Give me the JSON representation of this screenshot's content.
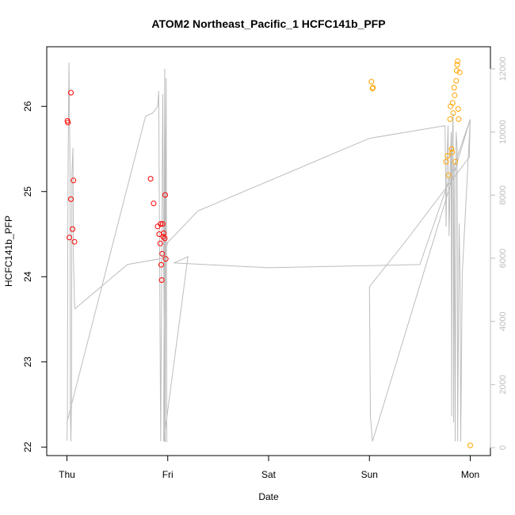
{
  "chart_data": {
    "type": "scatter",
    "title": "ATOM2 Northeast_Pacific_1 HCFC141b_PFP",
    "xlabel": "Date",
    "ylabel": "HCFC141b_PFP",
    "x_ticks": [
      {
        "x": 0,
        "label": "Thu"
      },
      {
        "x": 1,
        "label": "Fri"
      },
      {
        "x": 2,
        "label": "Sat"
      },
      {
        "x": 3,
        "label": "Sun"
      },
      {
        "x": 4,
        "label": "Mon"
      }
    ],
    "xlim": [
      -0.2,
      4.2
    ],
    "ylim": [
      21.9,
      26.7
    ],
    "y_ticks": [
      22,
      23,
      24,
      25,
      26
    ],
    "y2lim": [
      -250,
      12700
    ],
    "y2_ticks": [
      0,
      2000,
      4000,
      6000,
      8000,
      10000,
      12000
    ],
    "grid": false,
    "legend": "none",
    "colors": {
      "red": "#ff0000",
      "orange": "#ffa500",
      "altitude": "#bdbdbd"
    },
    "series": [
      {
        "color": "red",
        "points": [
          [
            0.005,
            25.83
          ],
          [
            0.01,
            25.81
          ],
          [
            0.025,
            24.46
          ],
          [
            0.04,
            26.16
          ],
          [
            0.04,
            24.91
          ],
          [
            0.055,
            24.56
          ],
          [
            0.065,
            25.13
          ],
          [
            0.075,
            24.41
          ],
          [
            0.83,
            25.15
          ],
          [
            0.86,
            24.86
          ],
          [
            0.9,
            24.59
          ],
          [
            0.915,
            24.5
          ],
          [
            0.925,
            24.39
          ],
          [
            0.93,
            24.62
          ],
          [
            0.935,
            24.14
          ],
          [
            0.94,
            23.96
          ],
          [
            0.945,
            24.27
          ],
          [
            0.95,
            24.62
          ],
          [
            0.955,
            24.47
          ],
          [
            0.96,
            24.51
          ],
          [
            0.97,
            24.45
          ],
          [
            0.975,
            24.96
          ],
          [
            0.98,
            24.21
          ]
        ]
      },
      {
        "color": "orange",
        "points": [
          [
            3.02,
            26.29
          ],
          [
            3.03,
            26.21
          ],
          [
            3.035,
            26.22
          ],
          [
            3.76,
            25.35
          ],
          [
            3.775,
            25.42
          ],
          [
            3.785,
            25.19
          ],
          [
            3.8,
            25.85
          ],
          [
            3.805,
            26.0
          ],
          [
            3.815,
            25.5
          ],
          [
            3.82,
            25.46
          ],
          [
            3.825,
            26.04
          ],
          [
            3.83,
            25.92
          ],
          [
            3.84,
            26.22
          ],
          [
            3.845,
            26.13
          ],
          [
            3.85,
            25.35
          ],
          [
            3.86,
            26.3
          ],
          [
            3.865,
            26.42
          ],
          [
            3.87,
            26.49
          ],
          [
            3.875,
            26.53
          ],
          [
            3.88,
            25.97
          ],
          [
            3.885,
            25.85
          ],
          [
            3.895,
            26.4
          ],
          [
            4.0,
            22.02
          ]
        ]
      }
    ],
    "altitude_line": [
      [
        0.0,
        220
      ],
      [
        0.005,
        1000
      ],
      [
        0.01,
        8000
      ],
      [
        0.02,
        12200
      ],
      [
        0.03,
        9000
      ],
      [
        0.035,
        1000
      ],
      [
        0.04,
        200
      ],
      [
        0.045,
        1500
      ],
      [
        0.05,
        8700
      ],
      [
        0.06,
        9500
      ],
      [
        0.065,
        6000
      ],
      [
        0.075,
        4600
      ],
      [
        0.08,
        4400
      ],
      [
        0.6,
        5800
      ],
      [
        0.95,
        6000
      ],
      [
        1.0,
        6500
      ],
      [
        1.3,
        7500
      ],
      [
        3.0,
        9800
      ],
      [
        3.75,
        10200
      ],
      [
        3.76,
        7000
      ],
      [
        3.77,
        9200
      ],
      [
        3.78,
        10200
      ],
      [
        3.79,
        6700
      ],
      [
        3.8,
        8500
      ],
      [
        3.81,
        10000
      ],
      [
        3.815,
        1000
      ],
      [
        3.82,
        9500
      ],
      [
        3.83,
        10600
      ],
      [
        3.835,
        800
      ],
      [
        3.84,
        9000
      ],
      [
        3.85,
        200
      ],
      [
        3.86,
        10000
      ],
      [
        3.87,
        9500
      ],
      [
        3.875,
        200
      ],
      [
        3.89,
        7100
      ],
      [
        3.9,
        5000
      ],
      [
        3.905,
        200
      ],
      [
        3.92,
        5500
      ],
      [
        4.0,
        10400
      ],
      [
        3.03,
        200
      ],
      [
        3.01,
        1000
      ],
      [
        3.0,
        5100
      ],
      [
        3.35,
        6500
      ],
      [
        3.99,
        9200
      ],
      [
        4.0,
        10400
      ],
      [
        3.5,
        5800
      ],
      [
        2.0,
        5700
      ],
      [
        1.06,
        5850
      ],
      [
        1.2,
        6050
      ],
      [
        0.96,
        200
      ],
      [
        0.97,
        12000
      ],
      [
        0.98,
        6500
      ],
      [
        0.97,
        11000
      ],
      [
        0.975,
        200
      ],
      [
        0.985,
        11700
      ],
      [
        0.99,
        200
      ],
      [
        0.97,
        200
      ],
      [
        0.95,
        11200
      ],
      [
        0.93,
        200
      ],
      [
        0.91,
        11300
      ],
      [
        0.9,
        10800
      ],
      [
        0.85,
        10600
      ],
      [
        0.78,
        10500
      ],
      [
        0.0,
        800
      ]
    ]
  }
}
